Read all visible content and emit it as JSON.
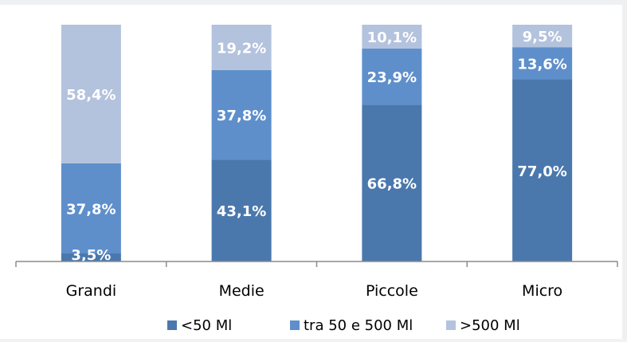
{
  "chart_data": {
    "type": "bar",
    "stacked": true,
    "normalized_percent": true,
    "categories": [
      "Grandi",
      "Medie",
      "Piccole",
      "Micro"
    ],
    "series": [
      {
        "name": "<50 Ml",
        "color": "#4a78ad",
        "values": [
          3.5,
          43.1,
          66.8,
          77.0
        ],
        "labels": [
          "3,5%",
          "43,1%",
          "66,8%",
          "77,0%"
        ]
      },
      {
        "name": "tra 50 e 500 Ml",
        "color": "#5e8fcb",
        "values": [
          37.8,
          37.8,
          23.9,
          13.6
        ],
        "labels": [
          "37,8%",
          "37,8%",
          "23,9%",
          "13,6%"
        ]
      },
      {
        "name": ">500 Ml",
        "color": "#b3c2dd",
        "values": [
          58.4,
          19.2,
          10.1,
          9.5
        ],
        "labels": [
          "58,4%",
          "19,2%",
          "10,1%",
          "9,5%"
        ]
      }
    ],
    "ylim": [
      0,
      100
    ],
    "grid": false,
    "legend": "bottom"
  }
}
